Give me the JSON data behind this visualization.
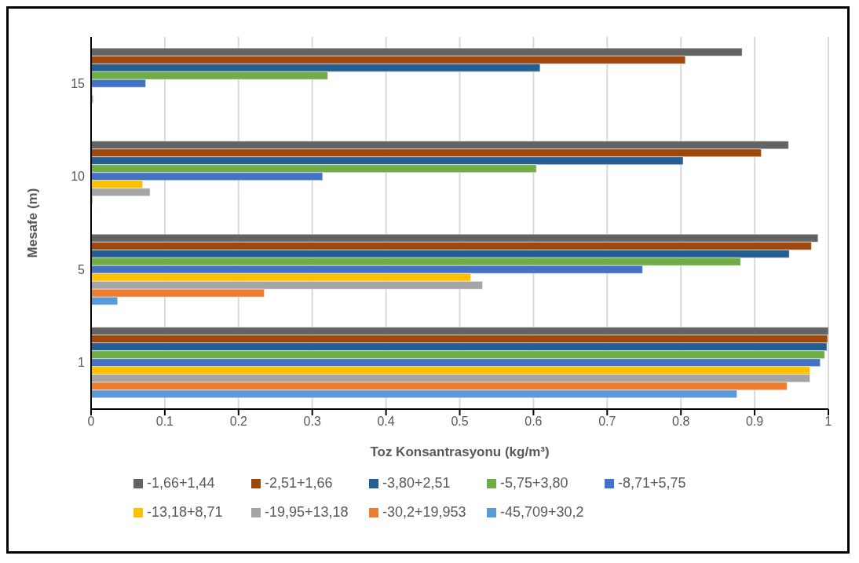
{
  "chart_data": {
    "type": "bar",
    "orientation": "horizontal",
    "xlabel": "Toz Konsantrasyonu (kg/m³)",
    "ylabel": "Mesafe (m)",
    "categories": [
      "15",
      "10",
      "5",
      "1"
    ],
    "xlim": [
      0,
      1
    ],
    "xticks": [
      0,
      0.1,
      0.2,
      0.3,
      0.4,
      0.5,
      0.6,
      0.7,
      0.8,
      0.9,
      1
    ],
    "grid": "x",
    "legend": "bottom",
    "series": [
      {
        "name": "-1,66+1,44",
        "color": "#636363",
        "values": [
          0.883,
          0.946,
          0.986,
          1.0
        ]
      },
      {
        "name": "-2,51+1,66",
        "color": "#9e480e",
        "values": [
          0.806,
          0.909,
          0.977,
          0.999
        ]
      },
      {
        "name": "-3,80+2,51",
        "color": "#255e91",
        "values": [
          0.609,
          0.803,
          0.947,
          0.998
        ]
      },
      {
        "name": "-5,75+3,80",
        "color": "#70ad47",
        "values": [
          0.321,
          0.604,
          0.881,
          0.995
        ]
      },
      {
        "name": "-8,71+5,75",
        "color": "#4472c4",
        "values": [
          0.074,
          0.314,
          0.748,
          0.989
        ]
      },
      {
        "name": "-13,18+8,71",
        "color": "#ffc000",
        "values": [
          0.002,
          0.07,
          0.515,
          0.975
        ]
      },
      {
        "name": "-19,95+13,18",
        "color": "#a5a5a5",
        "values": [
          0.003,
          0.08,
          0.531,
          0.975
        ]
      },
      {
        "name": "-30,2+19,953",
        "color": "#ed7d31",
        "values": [
          0,
          0.002,
          0.235,
          0.944
        ]
      },
      {
        "name": "-45,709+30,2",
        "color": "#5b9bd5",
        "values": [
          0,
          0,
          0.036,
          0.876
        ]
      }
    ]
  }
}
